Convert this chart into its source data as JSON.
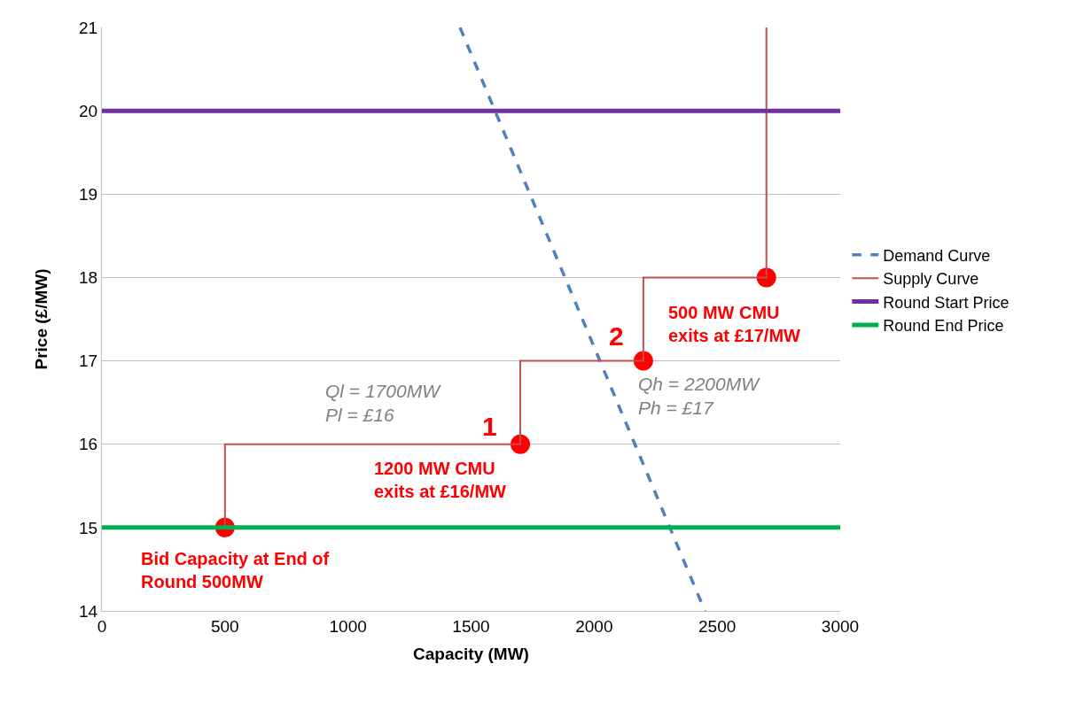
{
  "chart_data": {
    "type": "line",
    "xlabel": "Capacity (MW)",
    "ylabel": "Price (£/MW)",
    "xlim": [
      0,
      3000
    ],
    "xticks": [
      0,
      500,
      1000,
      1500,
      2000,
      2500,
      3000
    ],
    "ylim": [
      14,
      21
    ],
    "yticks": [
      14,
      15,
      16,
      17,
      18,
      19,
      20,
      21
    ],
    "grid": "y",
    "legend": "right",
    "marker": "none",
    "series": [
      {
        "type": "scatter",
        "marker": "circle",
        "color": "#ff0000",
        "x": [
          500,
          1700,
          2200,
          2700
        ],
        "values": [
          15,
          16,
          17,
          18
        ]
      },
      {
        "name": "Demand Curve",
        "color": "#4f81bd",
        "x": [
          1455,
          2450
        ],
        "values": [
          21,
          14
        ],
        "line_style": "dashed"
      },
      {
        "name": "Supply Curve",
        "color": "#c0504d",
        "x": [
          500,
          500,
          1700,
          1700,
          2200,
          2200,
          2700,
          2700
        ],
        "values": [
          15,
          16,
          16,
          17,
          17,
          18,
          18,
          21
        ]
      },
      {
        "name": "Round Start Price",
        "color": "#7030a0",
        "x": [
          0,
          3000
        ],
        "values": [
          20,
          20
        ]
      },
      {
        "name": "Round End Price",
        "color": "#00b050",
        "x": [
          0,
          3000
        ],
        "values": [
          15,
          15
        ]
      }
    ],
    "annotations": [
      {
        "text": "Bid Capacity at End of\nRound 500MW",
        "x": 500,
        "y": 15
      },
      {
        "text": "1",
        "x": 1700,
        "y": 16
      },
      {
        "text": "1200 MW CMU\nexits at £16/MW",
        "x": 1700,
        "y": 16
      },
      "Ql = 1700MW\nPl = £16",
      {
        "text": "2",
        "x": 2200,
        "y": 17
      },
      {
        "text": "Qh = 2200MW\nPh = £17",
        "x": 2200,
        "y": 17
      },
      {
        "text": "500 MW CMU\nexits at £17/MW",
        "x": 2200,
        "y": 17
      }
    ]
  }
}
